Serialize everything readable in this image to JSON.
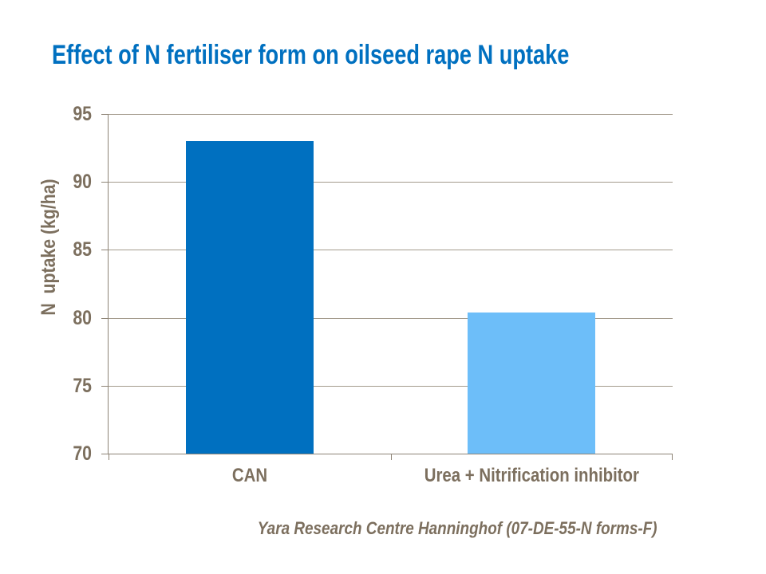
{
  "slide": {
    "title": "Effect of N fertiliser form on oilseed rape N uptake",
    "footer": "Yara Research Centre Hanninghof (07-DE-55-N forms-F)"
  },
  "chart_data": {
    "type": "bar",
    "title": "Effect of N fertiliser form on oilseed rape N uptake",
    "categories": [
      "CAN",
      "Urea + Nitrification inhibitor"
    ],
    "values": [
      93,
      80.4
    ],
    "xlabel": "",
    "ylabel": "N  uptake (kg/ha)",
    "ylim": [
      70,
      95
    ],
    "yticks": [
      70,
      75,
      80,
      85,
      90,
      95
    ],
    "grid": true,
    "legend": false,
    "bar_colors": [
      "#0070C0",
      "#6DBEF9"
    ],
    "source_note": "Yara Research Centre Hanninghof (07-DE-55-N forms-F)"
  },
  "colors": {
    "background": "#FFFFFF",
    "title_blue": "#0070C0",
    "bar_dark_blue": "#0070C0",
    "bar_light_blue": "#6DBEF9",
    "label_taupe": "#7C6F5E",
    "gridline": "#A49B8D",
    "axis_line": "#8E8476"
  }
}
